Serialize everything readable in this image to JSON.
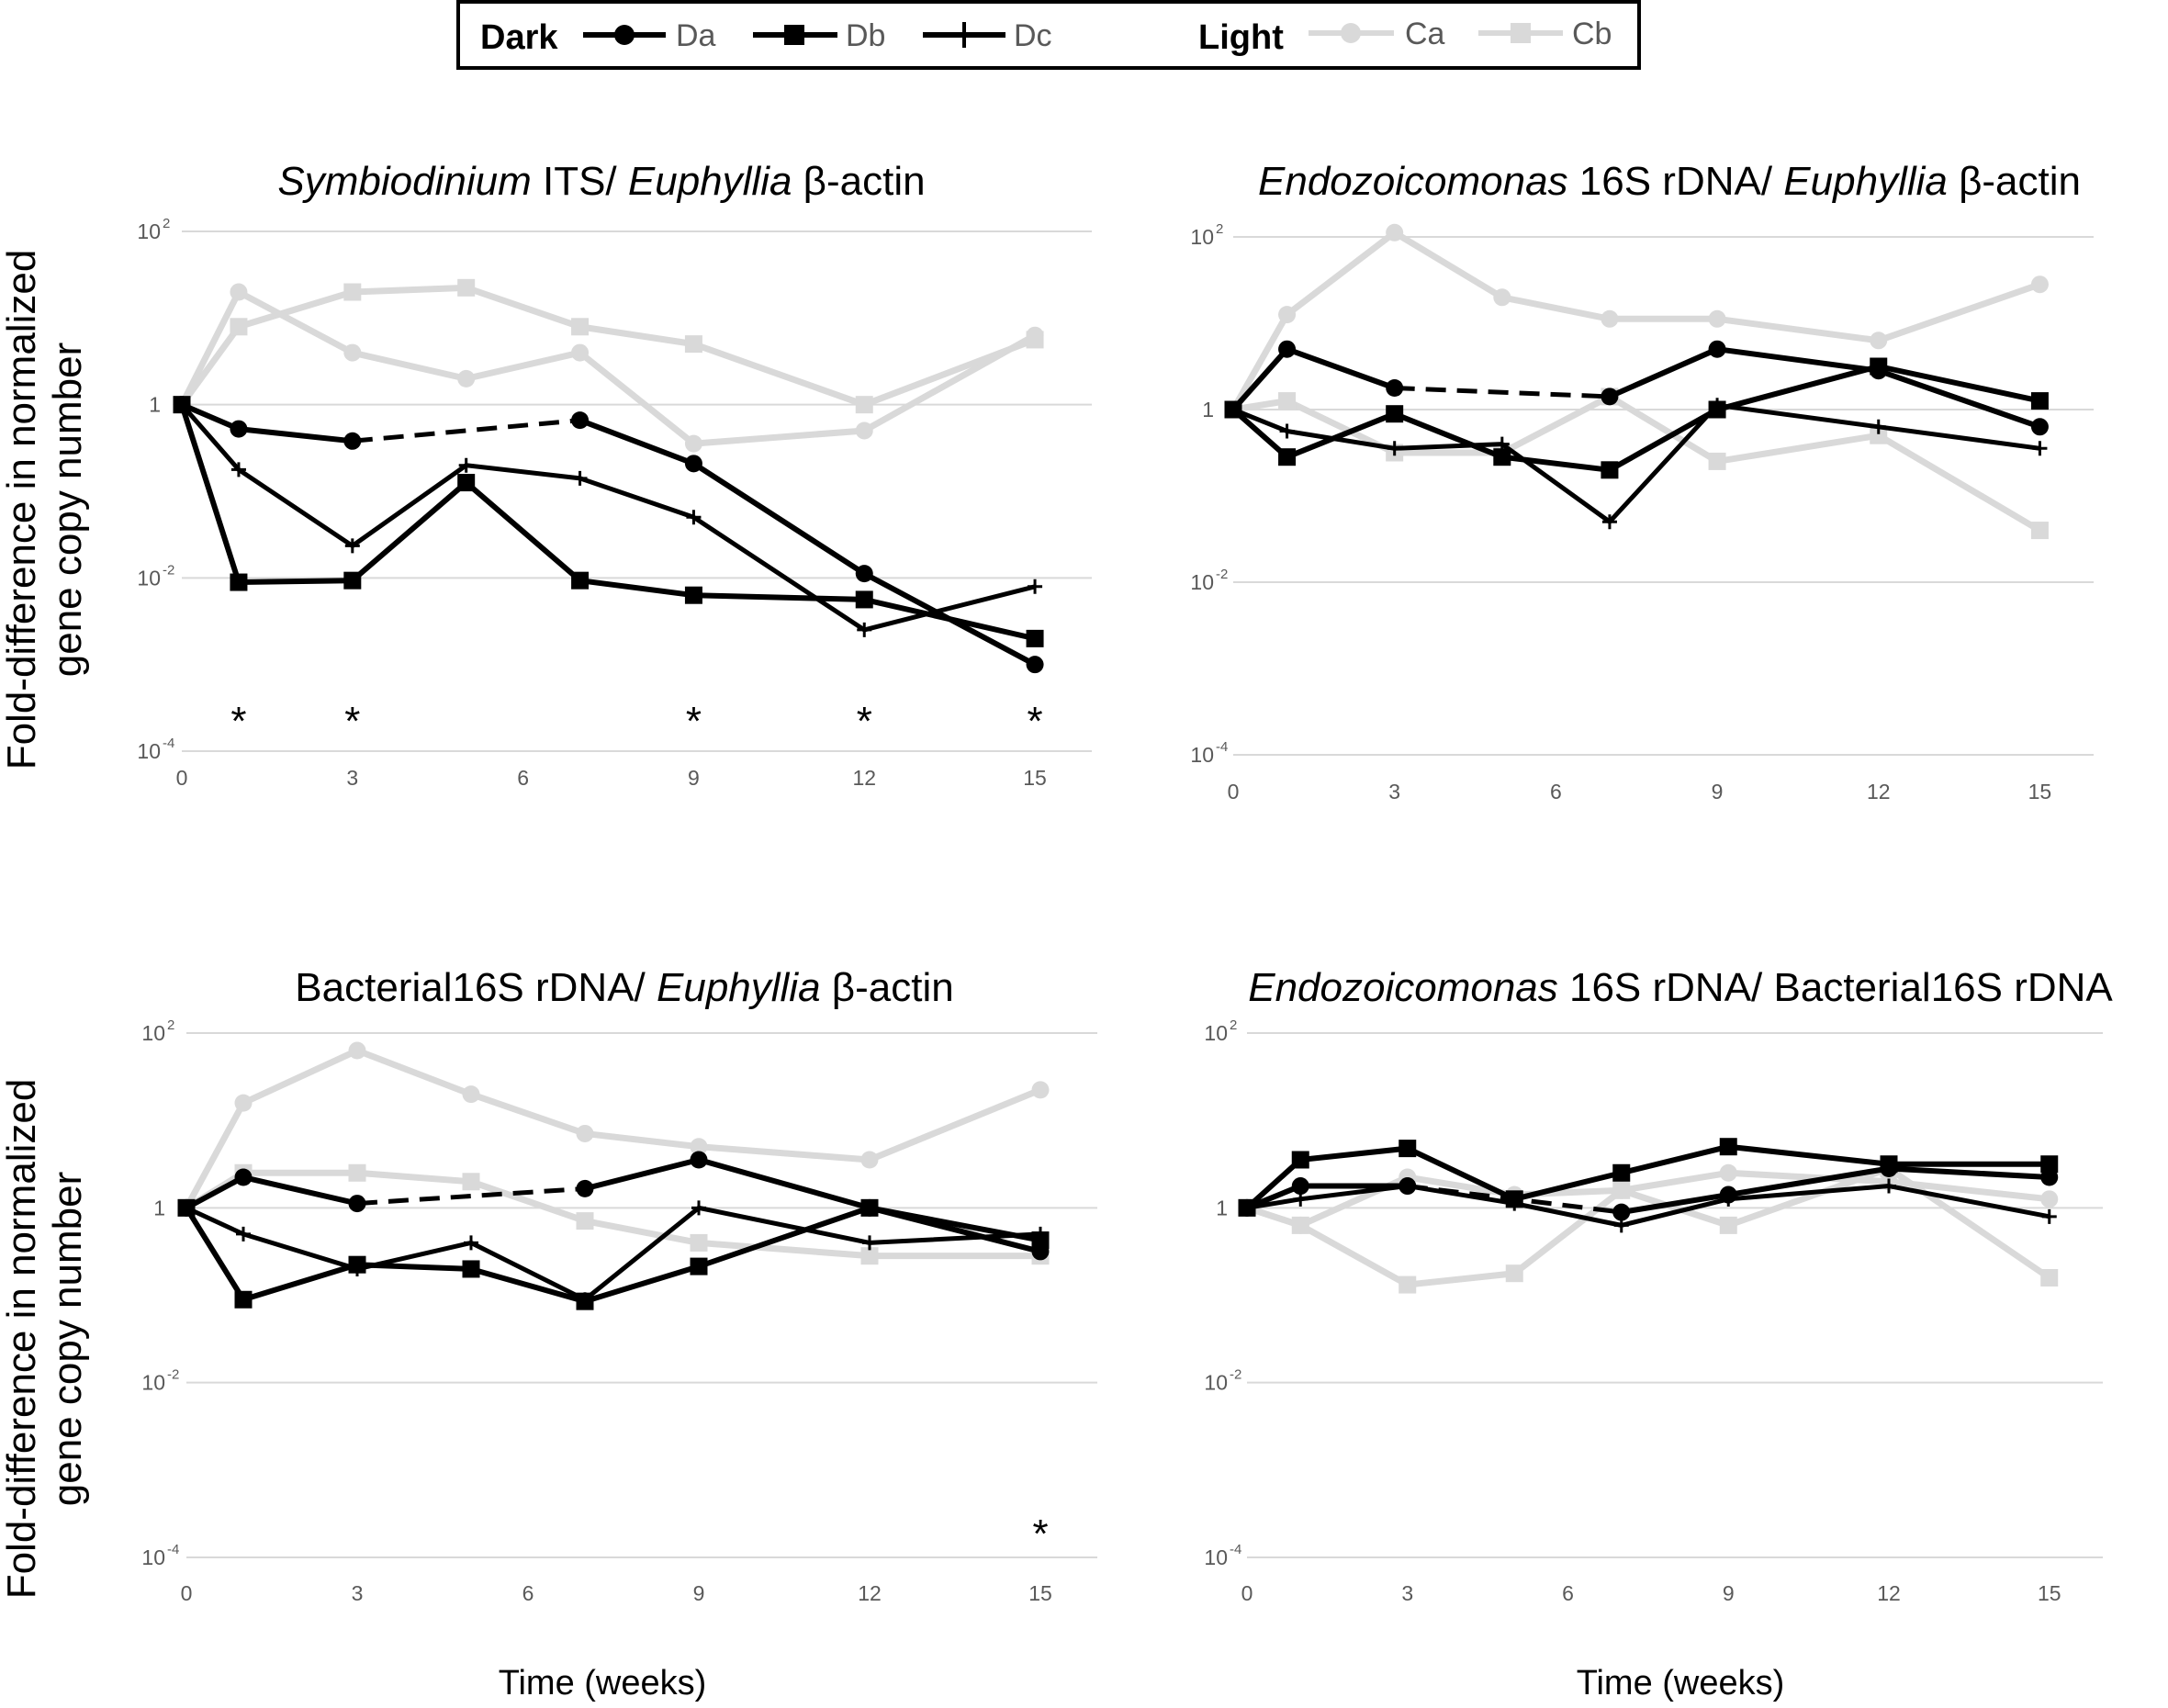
{
  "legend": {
    "dark_label": "Dark",
    "light_label": "Light",
    "entries": [
      {
        "key": "Da",
        "label": "Da",
        "group": "dark",
        "marker": "circle",
        "color": "#000000"
      },
      {
        "key": "Db",
        "label": "Db",
        "group": "dark",
        "marker": "square",
        "color": "#000000"
      },
      {
        "key": "Dc",
        "label": "Dc",
        "group": "dark",
        "marker": "plus",
        "color": "#000000"
      },
      {
        "key": "Ca",
        "label": "Ca",
        "group": "light",
        "marker": "circle",
        "color": "#d9d9d9"
      },
      {
        "key": "Cb",
        "label": "Cb",
        "group": "light",
        "marker": "square",
        "color": "#d9d9d9"
      }
    ]
  },
  "axes": {
    "y_label_line1": "Fold-difference in normalized",
    "y_label_line2": "gene copy number",
    "x_label": "Time (weeks)",
    "y_ticks": [
      {
        "base": "10",
        "exp": "2"
      },
      {
        "base": "1",
        "exp": ""
      },
      {
        "base": "10",
        "exp": "-2"
      },
      {
        "base": "10",
        "exp": "-4"
      }
    ],
    "x_ticks": [
      "0",
      "3",
      "6",
      "9",
      "12",
      "15"
    ]
  },
  "chart_data": [
    {
      "type": "line",
      "title_parts": [
        {
          "text": "Symbiodinium",
          "italic": true
        },
        {
          "text": " ITS/ ",
          "italic": false
        },
        {
          "text": "Euphyllia",
          "italic": true
        },
        {
          "text": " β-actin",
          "italic": false
        }
      ],
      "x_values": [
        0,
        1,
        3,
        5,
        7,
        9,
        12,
        15
      ],
      "ylim_log10": [
        -4,
        2
      ],
      "xlim": [
        0,
        16
      ],
      "asterisks": [
        {
          "x": 1,
          "text": "*"
        },
        {
          "x": 3,
          "text": "*"
        },
        {
          "x": 9,
          "text": "*"
        },
        {
          "x": 12,
          "text": "*"
        },
        {
          "x": 15,
          "text": "*"
        }
      ],
      "series": [
        {
          "key": "Ca",
          "name": "Ca",
          "log10": [
            0,
            1.3,
            0.6,
            0.3,
            0.6,
            -0.45,
            -0.3,
            0.8
          ]
        },
        {
          "key": "Cb",
          "name": "Cb",
          "log10": [
            0,
            0.9,
            1.3,
            1.35,
            0.9,
            0.7,
            0,
            0.75
          ]
        },
        {
          "key": "Db",
          "name": "Db",
          "log10": [
            0,
            -2.05,
            -2.03,
            -0.9,
            -2.03,
            -2.2,
            -2.25,
            -2.7
          ]
        },
        {
          "key": "Dc",
          "name": "Dc",
          "log10": [
            0,
            -0.75,
            -1.63,
            -0.7,
            -0.85,
            -1.3,
            -2.6,
            -2.1
          ]
        },
        {
          "key": "Da",
          "name": "Da",
          "log10": [
            0,
            -0.28,
            -0.42,
            null,
            -0.18,
            -0.68,
            -1.95,
            -3.0
          ],
          "dashed_from": 3,
          "dashed_to": 7
        }
      ]
    },
    {
      "type": "line",
      "title_parts": [
        {
          "text": "Endozoicomonas",
          "italic": true
        },
        {
          "text": " 16S rDNA/ ",
          "italic": false
        },
        {
          "text": "Euphyllia",
          "italic": true
        },
        {
          "text": " β-actin",
          "italic": false
        }
      ],
      "x_values": [
        0,
        1,
        3,
        5,
        7,
        9,
        12,
        15
      ],
      "ylim_log10": [
        -4,
        2
      ],
      "xlim": [
        0,
        16
      ],
      "asterisks": [],
      "series": [
        {
          "key": "Ca",
          "name": "Ca",
          "log10": [
            0,
            1.1,
            2.05,
            1.3,
            1.05,
            1.05,
            0.8,
            1.45
          ]
        },
        {
          "key": "Cb",
          "name": "Cb",
          "log10": [
            0,
            0.1,
            -0.5,
            -0.5,
            0.15,
            -0.6,
            -0.3,
            -1.4
          ]
        },
        {
          "key": "Db",
          "name": "Db",
          "log10": [
            0,
            -0.55,
            -0.05,
            -0.55,
            -0.7,
            0.0,
            0.5,
            0.1
          ]
        },
        {
          "key": "Dc",
          "name": "Dc",
          "log10": [
            0,
            -0.25,
            -0.45,
            -0.4,
            -1.3,
            0.05,
            -0.2,
            -0.45
          ]
        },
        {
          "key": "Da",
          "name": "Da",
          "log10": [
            0,
            0.7,
            0.25,
            null,
            0.15,
            0.7,
            0.45,
            -0.2
          ],
          "dashed_from": 3,
          "dashed_to": 7
        }
      ]
    },
    {
      "type": "line",
      "title_parts": [
        {
          "text": "Bacterial16S rDNA/ ",
          "italic": false
        },
        {
          "text": "Euphyllia",
          "italic": true
        },
        {
          "text": " β-actin",
          "italic": false
        }
      ],
      "x_values": [
        0,
        1,
        3,
        5,
        7,
        9,
        12,
        15
      ],
      "ylim_log10": [
        -4,
        2
      ],
      "xlim": [
        0,
        16
      ],
      "asterisks": [
        {
          "x": 15,
          "text": "*"
        }
      ],
      "series": [
        {
          "key": "Ca",
          "name": "Ca",
          "log10": [
            0,
            1.2,
            1.8,
            1.3,
            0.85,
            0.7,
            0.55,
            1.35
          ]
        },
        {
          "key": "Cb",
          "name": "Cb",
          "log10": [
            0,
            0.4,
            0.4,
            0.3,
            -0.15,
            -0.4,
            -0.55,
            -0.55
          ]
        },
        {
          "key": "Db",
          "name": "Db",
          "log10": [
            0,
            -1.05,
            -0.65,
            -0.7,
            -1.07,
            -0.67,
            0.0,
            -0.37
          ]
        },
        {
          "key": "Dc",
          "name": "Dc",
          "log10": [
            0,
            -0.3,
            -0.7,
            -0.4,
            -1.05,
            0.0,
            -0.4,
            -0.3
          ]
        },
        {
          "key": "Da",
          "name": "Da",
          "log10": [
            0,
            0.35,
            0.05,
            null,
            0.22,
            0.55,
            0.0,
            -0.5
          ],
          "dashed_from": 3,
          "dashed_to": 7
        }
      ]
    },
    {
      "type": "line",
      "title_parts": [
        {
          "text": "Endozoicomonas",
          "italic": true
        },
        {
          "text": " 16S rDNA/ Bacterial16S rDNA",
          "italic": false
        }
      ],
      "x_values": [
        0,
        1,
        3,
        5,
        7,
        9,
        12,
        15
      ],
      "ylim_log10": [
        -4,
        2
      ],
      "xlim": [
        0,
        16
      ],
      "asterisks": [],
      "series": [
        {
          "key": "Ca",
          "name": "Ca",
          "log10": [
            0,
            -0.2,
            0.35,
            0.15,
            0.2,
            0.4,
            0.3,
            0.1
          ]
        },
        {
          "key": "Cb",
          "name": "Cb",
          "log10": [
            0,
            -0.2,
            -0.88,
            -0.75,
            0.2,
            -0.2,
            0.45,
            -0.8
          ]
        },
        {
          "key": "Db",
          "name": "Db",
          "log10": [
            0,
            0.55,
            0.68,
            0.1,
            0.4,
            0.7,
            0.5,
            0.5
          ]
        },
        {
          "key": "Dc",
          "name": "Dc",
          "log10": [
            0,
            0.1,
            0.25,
            0.05,
            -0.2,
            0.1,
            0.25,
            -0.1
          ]
        },
        {
          "key": "Da",
          "name": "Da",
          "log10": [
            0,
            0.25,
            0.25,
            null,
            -0.05,
            0.15,
            0.45,
            0.35
          ],
          "dashed_from": 3,
          "dashed_to": 7
        }
      ]
    }
  ]
}
